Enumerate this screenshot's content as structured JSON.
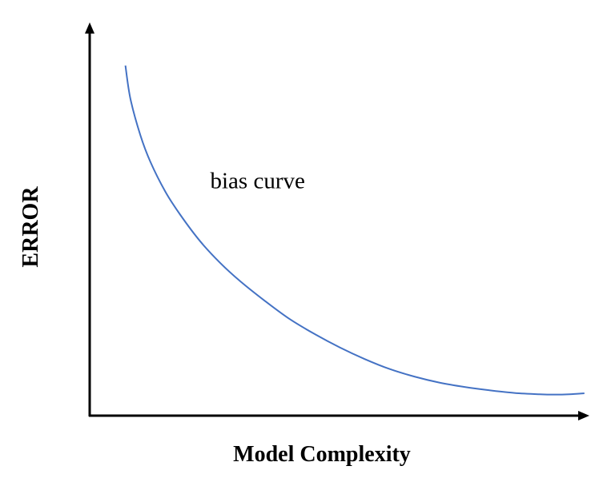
{
  "chart_data": {
    "type": "line",
    "title": "",
    "xlabel": "Model Complexity",
    "ylabel": "ERROR",
    "xlim": [
      0,
      100
    ],
    "ylim": [
      0,
      100
    ],
    "grid": false,
    "legend": "none",
    "annotations": [
      {
        "text": "bias curve",
        "x": 24,
        "y": 63
      }
    ],
    "series": [
      {
        "color": "#4472C4",
        "x": [
          7,
          8,
          10,
          12,
          15,
          18,
          22,
          26,
          30,
          35,
          40,
          45,
          50,
          55,
          60,
          65,
          70,
          75,
          80,
          85,
          90,
          93,
          96,
          99
        ],
        "y": [
          100,
          90,
          79,
          71,
          62,
          55,
          47,
          40.5,
          35,
          29,
          23.5,
          19,
          15,
          11.5,
          8.5,
          6.2,
          4.4,
          3.1,
          2.1,
          1.3,
          0.9,
          0.8,
          0.9,
          1.2
        ]
      }
    ]
  }
}
